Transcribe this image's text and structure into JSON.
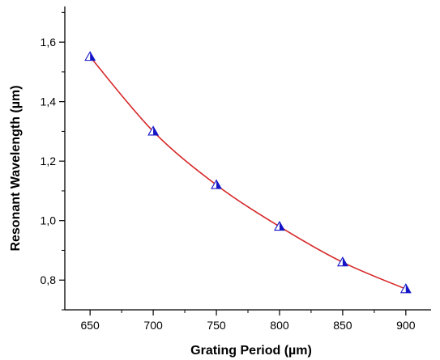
{
  "chart_data": {
    "type": "line",
    "title": "",
    "xlabel": "Grating Period (µm)",
    "ylabel": "Resonant Wavelength (µm)",
    "x": [
      650,
      700,
      750,
      800,
      850,
      900
    ],
    "series": [
      {
        "values": [
          1.551,
          1.3,
          1.12,
          0.98,
          0.86,
          0.77
        ],
        "line_color": "#d62728",
        "marker": "half-filled-triangle",
        "marker_fill": "#1515c8",
        "marker_edge": "#1515c8"
      }
    ],
    "xlim": [
      630,
      920
    ],
    "ylim": [
      0.7,
      1.72
    ],
    "xticks": [
      650,
      700,
      750,
      800,
      850,
      900
    ],
    "xtick_labels": [
      "650",
      "700",
      "750",
      "800",
      "850",
      "900"
    ],
    "yticks": [
      0.8,
      1.0,
      1.2,
      1.4,
      1.6
    ],
    "ytick_labels": [
      "0,8",
      "1,0",
      "1,2",
      "1,4",
      "1,6"
    ],
    "grid": false,
    "legend": "none"
  }
}
